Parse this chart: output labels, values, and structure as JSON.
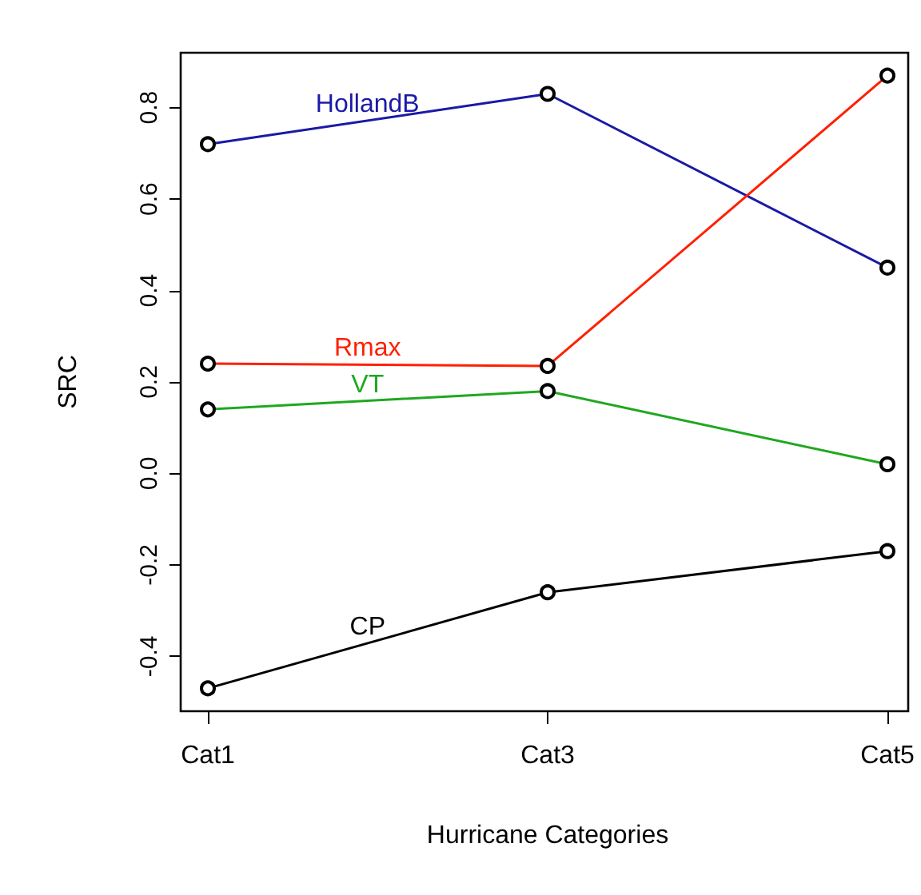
{
  "chart_data": {
    "type": "line",
    "xlabel": "Hurricane Categories",
    "ylabel": "SRC",
    "categories": [
      "Cat1",
      "Cat3",
      "Cat5"
    ],
    "series": [
      {
        "name": "HollandB",
        "color": "#1a1aa6",
        "values": [
          0.72,
          0.83,
          0.45
        ]
      },
      {
        "name": "Rmax",
        "color": "#ff2000",
        "values": [
          0.24,
          0.235,
          0.87
        ]
      },
      {
        "name": "VT",
        "color": "#1fa81f",
        "values": [
          0.14,
          0.18,
          0.02
        ]
      },
      {
        "name": "CP",
        "color": "#000000",
        "values": [
          -0.47,
          -0.26,
          -0.17
        ]
      }
    ],
    "ylim": [
      -0.52,
      0.92
    ],
    "yticks": [
      -0.4,
      -0.2,
      {
        "value": 0,
        "label": "0.0"
      },
      0.2,
      0.4,
      0.6,
      0.8
    ],
    "marker": "circle",
    "line_style": "solid",
    "grid": false,
    "legend": false
  }
}
